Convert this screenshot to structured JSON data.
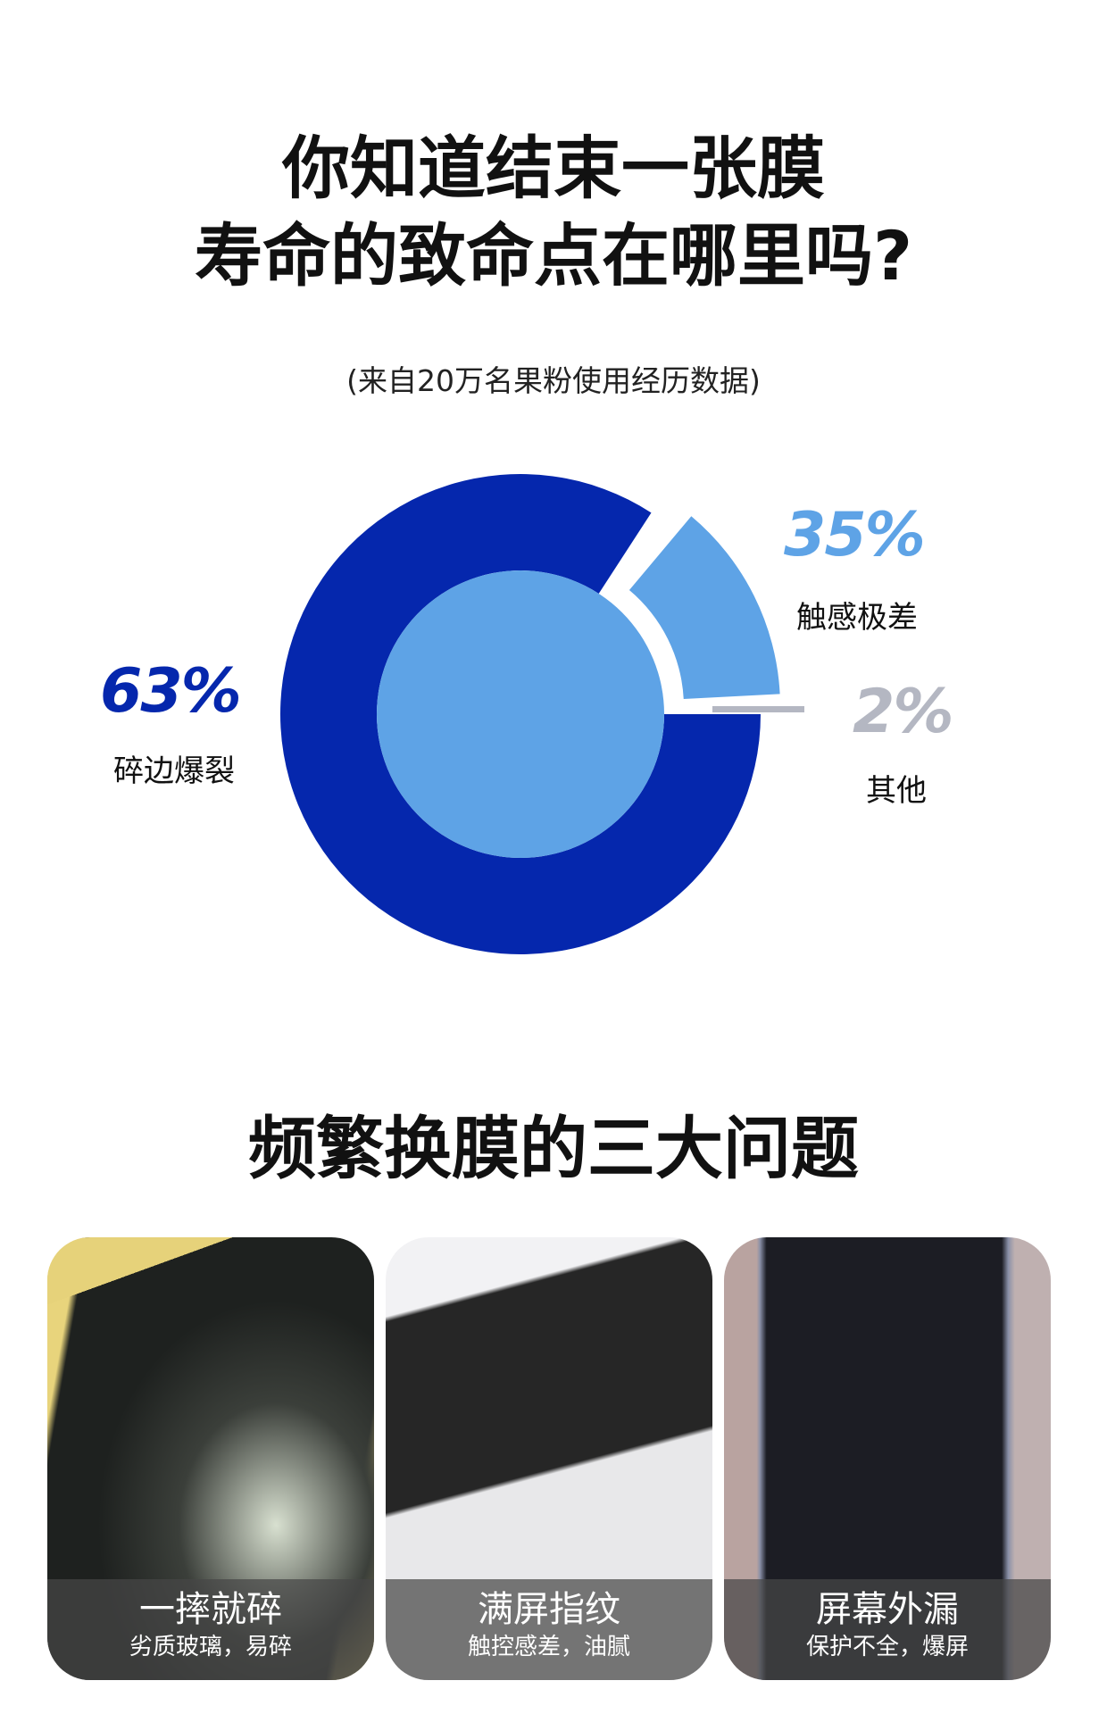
{
  "title": {
    "line1": "你知道结束一张膜",
    "line2": "寿命的致命点在哪里吗?"
  },
  "subtitle": "(来自20万名果粉使用经历数据)",
  "chart_data": {
    "type": "pie",
    "style": "donut",
    "slices": [
      {
        "label": "碎边爆裂",
        "value": 63,
        "display": "63%",
        "color": "#0527ad"
      },
      {
        "label": "触感极差",
        "value": 35,
        "display": "35%",
        "color": "#5ea3e6"
      },
      {
        "label": "其他",
        "value": 2,
        "display": "2%",
        "color": "#b4b7c2"
      }
    ]
  },
  "section_title": "频繁换膜的三大问题",
  "cards": [
    {
      "title": "一摔就碎",
      "subtitle": "劣质玻璃，易碎",
      "image": "cracked-phone-photo"
    },
    {
      "title": "满屏指纹",
      "subtitle": "触控感差，油腻",
      "image": "fingerprint-phone-photo"
    },
    {
      "title": "屏幕外漏",
      "subtitle": "保护不全，爆屏",
      "image": "edge-exposed-phone-photo"
    }
  ]
}
